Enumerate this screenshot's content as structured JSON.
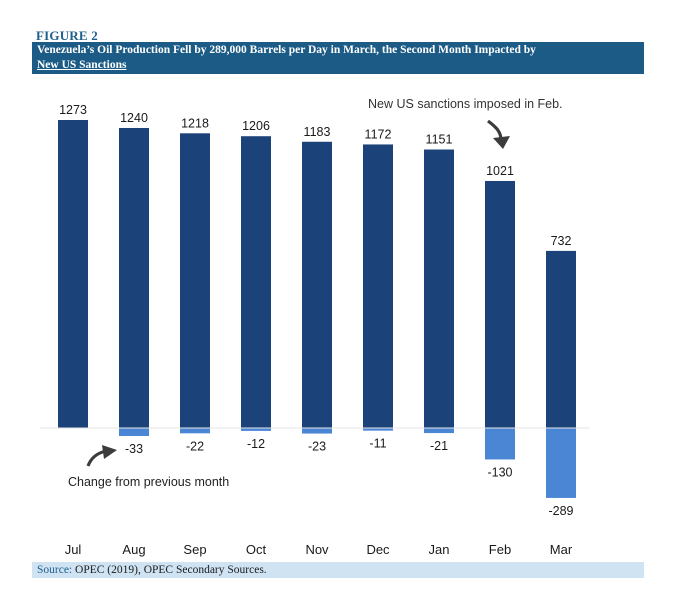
{
  "figure_label": "FIGURE 2",
  "title_line1": "Venezuela’s Oil Production Fell by 289,000 Barrels per Day in March, the Second Month Impacted by",
  "title_line2": "New US Sanctions",
  "source_prefix": "Source:",
  "source_text": "OPEC (2019), OPEC Secondary Sources.",
  "annotations": {
    "sanctions": "New US sanctions imposed in Feb.",
    "change": "Change from previous month"
  },
  "colors": {
    "production": "#1b4379",
    "change": "#4a86d4",
    "title_bg": "#1b5b86",
    "source_bg": "#cfe3f3",
    "arrow": "#3c3c3c"
  },
  "chart_data": {
    "type": "bar",
    "categories": [
      "Jul",
      "Aug",
      "Sep",
      "Oct",
      "Nov",
      "Dec",
      "Jan",
      "Feb",
      "Mar"
    ],
    "series": [
      {
        "values": [
          1273,
          1240,
          1218,
          1206,
          1183,
          1172,
          1151,
          1021,
          732
        ]
      },
      {
        "values": [
          null,
          -33,
          -22,
          -12,
          -23,
          -11,
          -21,
          -130,
          -289
        ]
      }
    ],
    "title": "Venezuela’s Oil Production Fell by 289,000 Barrels per Day in March, the Second Month Impacted by New US Sanctions",
    "xlabel": "",
    "ylabel": "",
    "ylim": [
      -289,
      1273
    ],
    "grid": false,
    "legend": "none"
  }
}
